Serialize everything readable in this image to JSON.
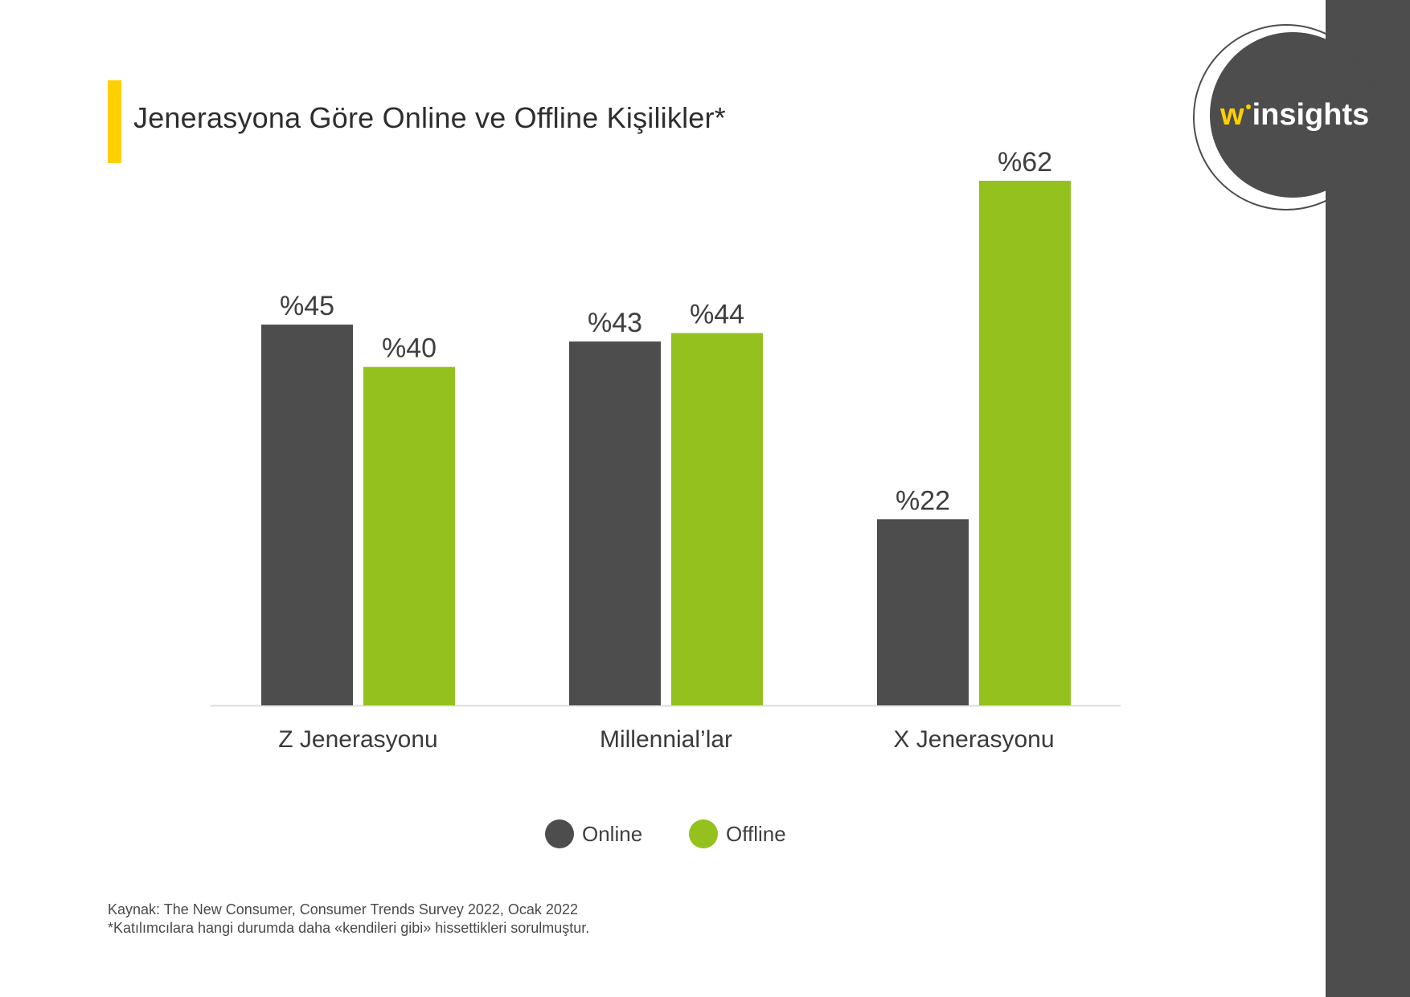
{
  "colors": {
    "online": "#4d4d4d",
    "offline": "#95c11f",
    "accent": "#ffd000",
    "axis": "#dddddd"
  },
  "logo": {
    "w": "w",
    "rest": "insights"
  },
  "chart_data": {
    "type": "bar",
    "title": "Jenerasyona Göre Online ve Offline Kişilikler*",
    "categories": [
      "Z Jenerasyonu",
      "Millennial’lar",
      "X Jenerasyonu"
    ],
    "series": [
      {
        "name": "Online",
        "values": [
          45,
          43,
          22
        ],
        "labels": [
          "%45",
          "%43",
          "%22"
        ]
      },
      {
        "name": "Offline",
        "values": [
          40,
          44,
          62
        ],
        "labels": [
          "%40",
          "%44",
          "%62"
        ]
      }
    ],
    "ylim": [
      0,
      62
    ],
    "legend": "bottom-center",
    "grid": false
  },
  "footnotes": {
    "source": "Kaynak: The New Consumer, Consumer Trends Survey 2022, Ocak 2022",
    "note": "*Katılımcılara hangi durumda daha «kendileri gibi» hissettikleri sorulmuştur."
  }
}
